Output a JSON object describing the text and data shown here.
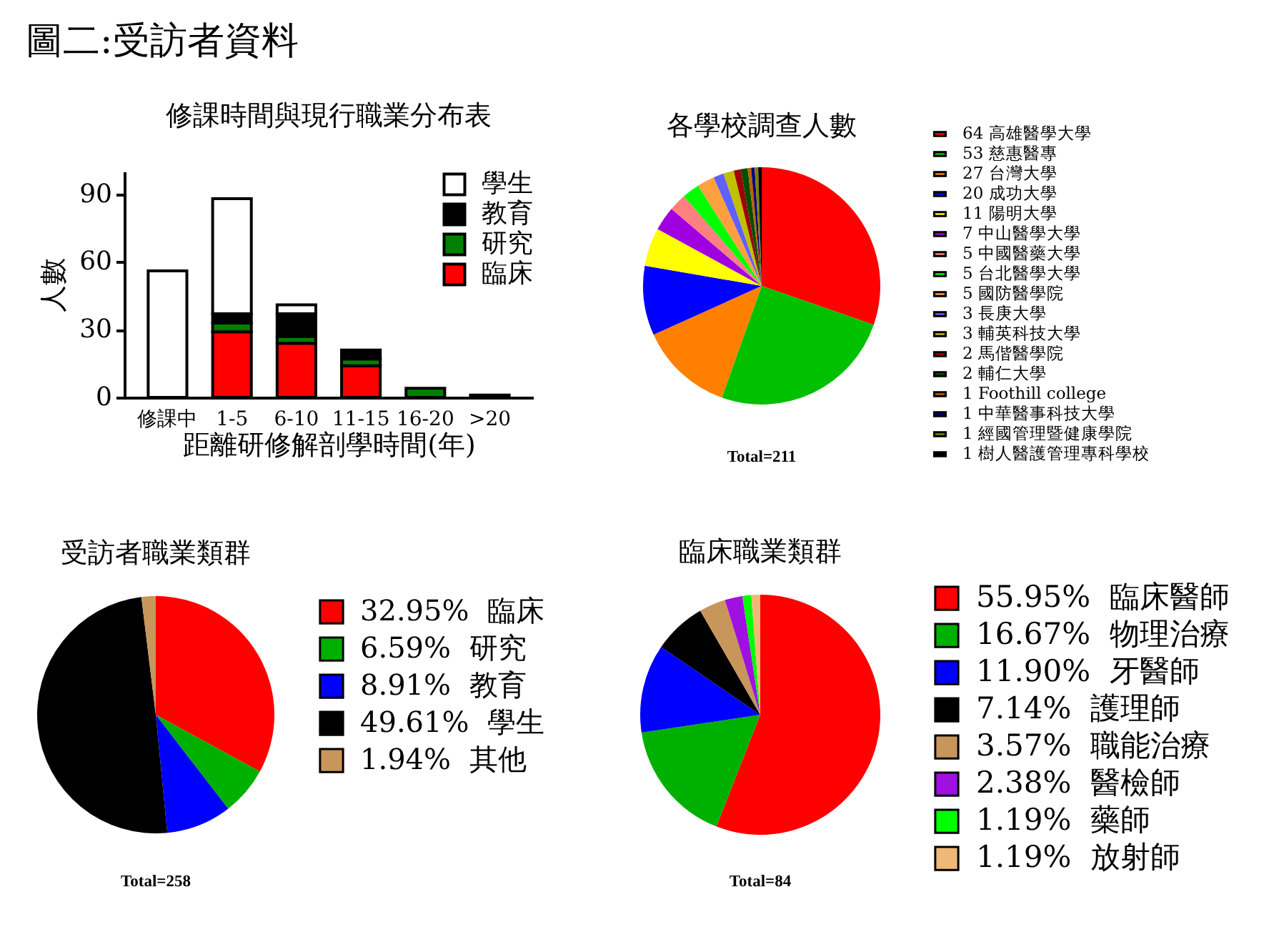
{
  "chart_data": [
    {
      "type": "other",
      "title": "圖二:受訪者資料"
    },
    {
      "type": "bar",
      "title": "修課時間與現行職業分布表",
      "xlabel": "距離研修解剖學時間(年)",
      "ylabel": "人數",
      "categories": [
        "修課中",
        "1-5",
        "6-10",
        "11-15",
        "16-20",
        ">20"
      ],
      "stacked": true,
      "series": [
        {
          "name": "臨床",
          "color": "#ff0000",
          "values": [
            null,
            29,
            24,
            14,
            null,
            null
          ]
        },
        {
          "name": "研究",
          "color": "#008000",
          "values": [
            null,
            4,
            3,
            3,
            4,
            null
          ]
        },
        {
          "name": "教育",
          "color": "#000000",
          "values": [
            null,
            4,
            10,
            4,
            null,
            1
          ]
        },
        {
          "name": "學生",
          "color": "#ffffff",
          "values": [
            56,
            51,
            4,
            null,
            null,
            null
          ]
        }
      ],
      "ylim": [
        0,
        100
      ],
      "yticks": [
        0,
        30,
        60,
        90
      ],
      "legend": "top right"
    },
    {
      "type": "pie",
      "title": "各學校調查人數",
      "categories": [
        "高雄醫學大學",
        "慈惠醫專",
        "台灣大學",
        "成功大學",
        "陽明大學",
        "中山醫學大學",
        "中國醫藥大學",
        "台北醫學大學",
        "國防醫學院",
        "長庚大學",
        "輔英科技大學",
        "馬偕醫學院",
        "輔仁大學",
        "Foothill college",
        "中華醫事科技大學",
        "經國管理暨健康學院",
        "樹人醫護管理專科學校"
      ],
      "values": [
        64,
        53,
        27,
        20,
        11,
        7,
        5,
        5,
        5,
        3,
        3,
        2,
        2,
        1,
        1,
        1,
        1
      ],
      "value_labels": [
        "64",
        "53",
        "27",
        "20",
        "11",
        "7",
        "5",
        "5",
        "5",
        "3",
        "3",
        "2",
        "2",
        "1",
        "1",
        "1",
        "1"
      ],
      "colors": [
        "#ff0000",
        "#00c000",
        "#ff8000",
        "#0000ff",
        "#ffff00",
        "#a000e0",
        "#ff8080",
        "#00ff00",
        "#ffa040",
        "#6060ff",
        "#c0c000",
        "#a00000",
        "#005000",
        "#c06000",
        "#000080",
        "#808000",
        "#000000"
      ],
      "legend": "right",
      "annotations": [
        "Total=211"
      ]
    },
    {
      "type": "pie",
      "title": "受訪者職業類群",
      "categories": [
        "臨床",
        "研究",
        "教育",
        "學生",
        "其他"
      ],
      "values": [
        32.95,
        6.59,
        8.91,
        49.61,
        1.94
      ],
      "value_labels": [
        "32.95%",
        "6.59%",
        "8.91%",
        "49.61%",
        "1.94%"
      ],
      "colors": [
        "#ff0000",
        "#00b000",
        "#0000ff",
        "#000000",
        "#c8965a"
      ],
      "legend": "right",
      "annotations": [
        "Total=258"
      ]
    },
    {
      "type": "pie",
      "title": "臨床職業類群",
      "categories": [
        "臨床醫師",
        "物理治療",
        "牙醫師",
        "護理師",
        "職能治療",
        "醫檢師",
        "藥師",
        "放射師"
      ],
      "values": [
        55.95,
        16.67,
        11.9,
        7.14,
        3.57,
        2.38,
        1.19,
        1.19
      ],
      "value_labels": [
        "55.95%",
        "16.67%",
        "11.90%",
        "7.14%",
        "3.57%",
        "2.38%",
        "1.19%",
        "1.19%"
      ],
      "colors": [
        "#ff0000",
        "#00b000",
        "#0000ff",
        "#000000",
        "#c8965a",
        "#a010e0",
        "#00ff00",
        "#f0b878"
      ],
      "legend": "right",
      "annotations": [
        "Total=84"
      ]
    }
  ]
}
